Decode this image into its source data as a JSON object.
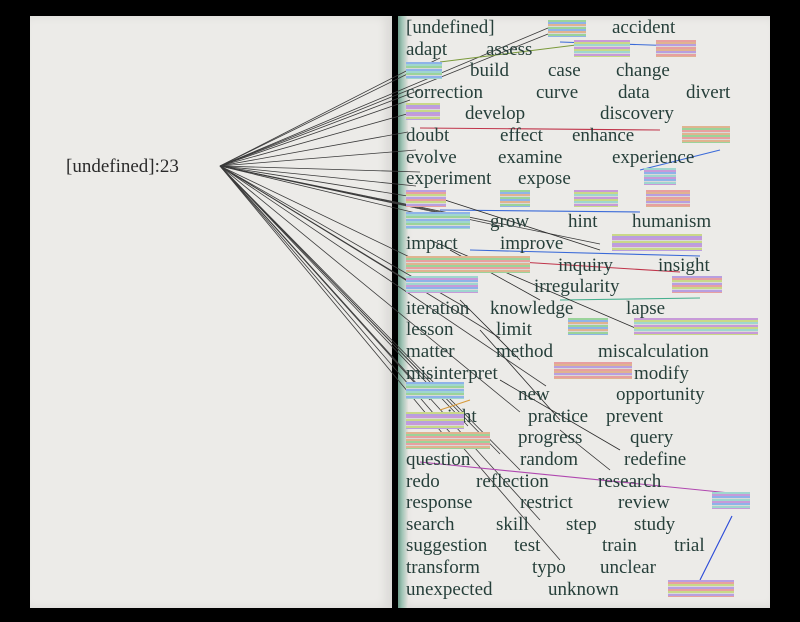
{
  "hub_label": "[undefined]:23",
  "lines": [
    [
      "[undefined]",
      "accident"
    ],
    [
      "adapt",
      "assess"
    ],
    [
      "build",
      "case",
      "change"
    ],
    [
      "correction",
      "curve",
      "data",
      "divert"
    ],
    [
      "develop",
      "discovery"
    ],
    [
      "doubt",
      "effect",
      "enhance"
    ],
    [
      "evolve",
      "examine",
      "experience"
    ],
    [
      "experiment",
      "expose"
    ],
    [],
    [
      "grow",
      "hint",
      "humanism"
    ],
    [
      "impact",
      "improve"
    ],
    [
      "inquiry",
      "insight"
    ],
    [
      "irregularity"
    ],
    [
      "iteration",
      "knowledge",
      "lapse"
    ],
    [
      "lesson",
      "limit"
    ],
    [
      "matter",
      "method",
      "miscalculation"
    ],
    [
      "misinterpret",
      "modify"
    ],
    [
      "new",
      "opportunity"
    ],
    [
      "oversight",
      "practice",
      "prevent"
    ],
    [
      "progress",
      "query"
    ],
    [
      "question",
      "random",
      "redefine"
    ],
    [
      "redo",
      "reflection",
      "research"
    ],
    [
      "response",
      "restrict",
      "review"
    ],
    [
      "search",
      "skill",
      "step",
      "study"
    ],
    [
      "suggestion",
      "test",
      "train",
      "trial"
    ],
    [
      "transform",
      "typo",
      "unclear"
    ],
    [
      "unexpected",
      "unknown"
    ]
  ]
}
